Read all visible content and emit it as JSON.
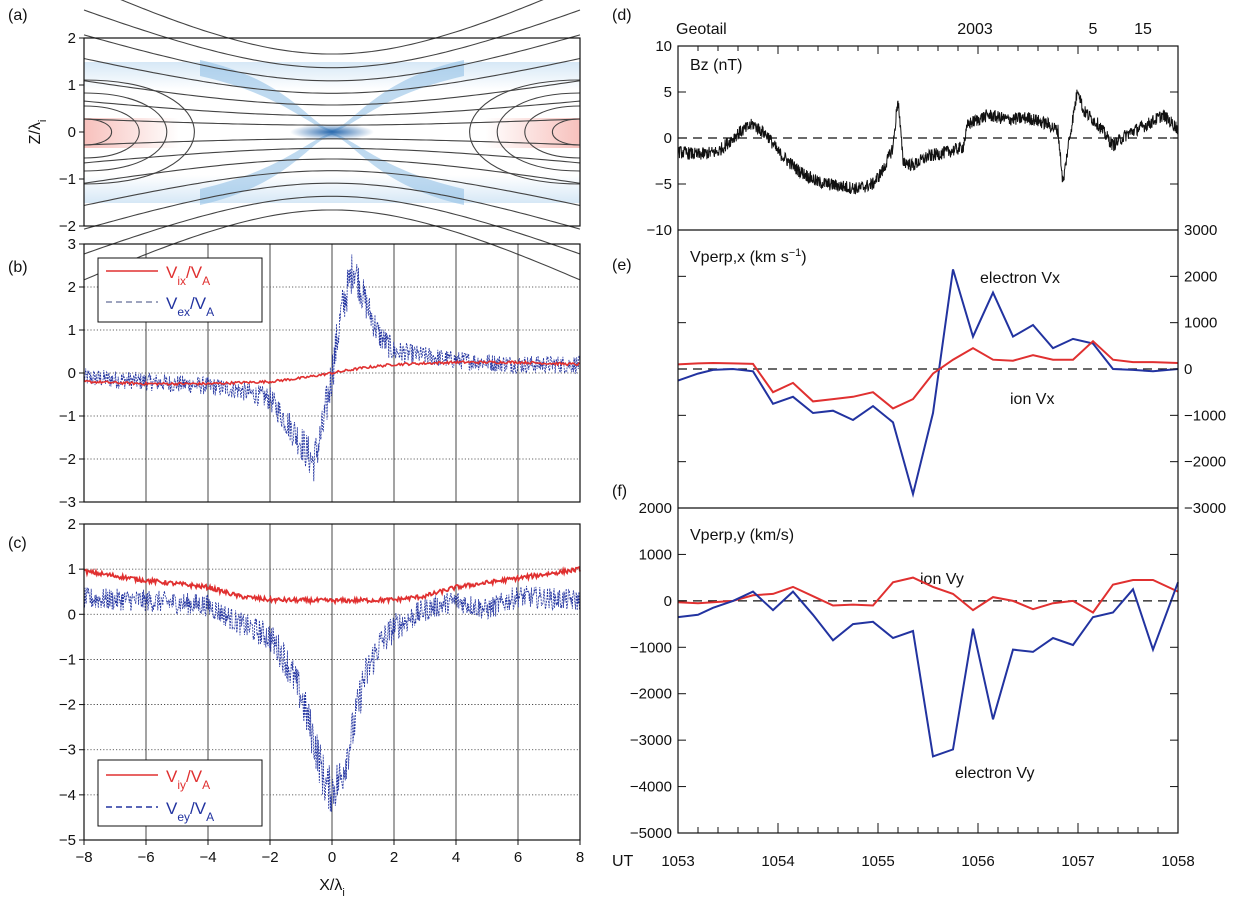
{
  "chart_data": [
    {
      "panel": "a",
      "type": "field-line map",
      "title": "(a)",
      "ylabel": "Z/λi",
      "xlim": [
        -8,
        8
      ],
      "ylim": [
        -2,
        2
      ],
      "yticks": [
        2,
        1,
        0,
        -1,
        -2
      ],
      "ytick_labels": [
        "2",
        "1",
        "0",
        "−1",
        "−2"
      ],
      "legend": "none"
    },
    {
      "panel": "b",
      "type": "line",
      "title": "(b)",
      "xlim": [
        -8,
        8
      ],
      "ylim": [
        -3,
        3
      ],
      "yticks": [
        3,
        2,
        1,
        0,
        -1,
        -2,
        -3
      ],
      "ytick_labels": [
        "3",
        "2",
        "1",
        "0",
        "−1",
        "−2",
        "−3"
      ],
      "grid": true,
      "legend_position": "top-left",
      "series": [
        {
          "name": "Vix/VA",
          "label_main": "V",
          "label_sub": "ix",
          "label_tail": "/V",
          "label_sub2": "A",
          "style": "solid",
          "color": "#e03030",
          "x": [
            -8,
            -6,
            -4,
            -2,
            -1,
            0,
            1,
            2,
            4,
            6,
            8
          ],
          "y": [
            -0.2,
            -0.25,
            -0.25,
            -0.2,
            -0.12,
            0,
            0.12,
            0.2,
            0.25,
            0.25,
            0.2
          ]
        },
        {
          "name": "Vex/VA",
          "label_main": "V",
          "label_sub": "ex",
          "label_tail": "/V",
          "label_sub2": "A",
          "style": "dashed",
          "color": "#2233a0",
          "x": [
            -8,
            -6,
            -4,
            -3,
            -2,
            -1.5,
            -1,
            -0.6,
            -0.3,
            0,
            0.3,
            0.7,
            1,
            1.5,
            2,
            4,
            6,
            8
          ],
          "y": [
            -0.1,
            -0.2,
            -0.3,
            -0.4,
            -0.6,
            -1.1,
            -1.6,
            -2.1,
            -1.3,
            0,
            1.4,
            2.5,
            1.8,
            0.9,
            0.5,
            0.3,
            0.2,
            0.2
          ]
        }
      ]
    },
    {
      "panel": "c",
      "type": "line",
      "title": "(c)",
      "xlabel": "X/λi",
      "xlim": [
        -8,
        8
      ],
      "ylim": [
        -5,
        2
      ],
      "xticks": [
        -8,
        -6,
        -4,
        -2,
        0,
        2,
        4,
        6,
        8
      ],
      "xtick_labels": [
        "−8",
        "−6",
        "−4",
        "−2",
        "0",
        "2",
        "4",
        "6",
        "8"
      ],
      "yticks": [
        2,
        1,
        0,
        -1,
        -2,
        -3,
        -4,
        -5
      ],
      "ytick_labels": [
        "2",
        "1",
        "0",
        "−1",
        "−2",
        "−3",
        "−4",
        "−5"
      ],
      "grid": true,
      "legend_position": "bottom-left",
      "series": [
        {
          "name": "Viy/VA",
          "label_main": "V",
          "label_sub": "iy",
          "label_tail": "/V",
          "label_sub2": "A",
          "style": "solid",
          "color": "#e03030",
          "x": [
            -8,
            -6,
            -4,
            -3,
            -2,
            0,
            2,
            3,
            4,
            6,
            8
          ],
          "y": [
            0.95,
            0.75,
            0.6,
            0.4,
            0.32,
            0.3,
            0.32,
            0.4,
            0.6,
            0.8,
            1.0
          ]
        },
        {
          "name": "Vey/VA",
          "label_main": "V",
          "label_sub": "ey",
          "label_tail": "/V",
          "label_sub2": "A",
          "style": "dashed",
          "color": "#2233a0",
          "x": [
            -8,
            -6,
            -4,
            -3,
            -2,
            -1.5,
            -1,
            -0.5,
            -0.2,
            0,
            0.3,
            0.7,
            1,
            1.5,
            2,
            3,
            4,
            5,
            6,
            8
          ],
          "y": [
            0.35,
            0.3,
            0.2,
            -0.2,
            -0.5,
            -1.0,
            -1.8,
            -3.0,
            -3.8,
            -3.9,
            -3.6,
            -2.5,
            -1.5,
            -0.7,
            -0.3,
            0.1,
            0.3,
            0.1,
            0.4,
            0.3
          ]
        }
      ]
    },
    {
      "panel": "d",
      "type": "line",
      "title": "(d)",
      "header_left": "Geotail",
      "header_date": "2003",
      "header_month": "5",
      "header_day": "15",
      "annotation": "Bz (nT)",
      "xlim": [
        1053,
        1058
      ],
      "ylim": [
        -10,
        10
      ],
      "yticks": [
        10,
        5,
        0,
        -5,
        -10
      ],
      "ytick_labels": [
        "10",
        "5",
        "0",
        "−5",
        "−10"
      ],
      "series": [
        {
          "name": "Bz",
          "color": "#111111",
          "x": [
            1053,
            1053.2,
            1053.4,
            1053.6,
            1053.75,
            1053.9,
            1054,
            1054.2,
            1054.4,
            1054.6,
            1054.8,
            1054.95,
            1055.05,
            1055.15,
            1055.2,
            1055.25,
            1055.35,
            1055.5,
            1055.7,
            1055.85,
            1055.9,
            1056.1,
            1056.3,
            1056.5,
            1056.7,
            1056.8,
            1056.85,
            1056.9,
            1057,
            1057.05,
            1057.2,
            1057.35,
            1057.5,
            1057.7,
            1057.85,
            1058
          ],
          "y": [
            -1.5,
            -1.8,
            -1.5,
            0.5,
            1.5,
            0.2,
            -1.5,
            -3.5,
            -4.8,
            -5.2,
            -5.5,
            -5,
            -3.5,
            -1,
            4.3,
            -2.5,
            -3,
            -2,
            -1.5,
            -1,
            1.5,
            2.5,
            2,
            2.2,
            1.5,
            0.8,
            -5,
            -1,
            5.5,
            3,
            1.5,
            -0.8,
            0.5,
            1.5,
            2.5,
            1
          ]
        }
      ]
    },
    {
      "panel": "e",
      "type": "line",
      "title": "(e)",
      "annotation": "Vperp,x (km s−1)",
      "annotation_main": "Vperp,x (km s",
      "annotation_sup": "−1",
      "annotation_tail": ")",
      "xlim": [
        1053,
        1058
      ],
      "ylim": [
        -3000,
        3000
      ],
      "yticks": [
        3000,
        2000,
        1000,
        0,
        -1000,
        -2000,
        -3000
      ],
      "ytick_labels": [
        "3000",
        "2000",
        "1000",
        "0",
        "−1000",
        "−2000",
        "−3000"
      ],
      "y_axis_side": "right",
      "series": [
        {
          "name": "electron Vx",
          "color": "#2233a0",
          "x": [
            1053,
            1053.2,
            1053.35,
            1053.55,
            1053.75,
            1053.95,
            1054.15,
            1054.35,
            1054.55,
            1054.75,
            1054.95,
            1055.15,
            1055.35,
            1055.55,
            1055.75,
            1055.95,
            1056.15,
            1056.35,
            1056.55,
            1056.75,
            1056.95,
            1057.15,
            1057.35,
            1057.55,
            1057.75,
            1058
          ],
          "y": [
            -250,
            -100,
            -20,
            0,
            -50,
            -750,
            -600,
            -950,
            -900,
            -1100,
            -800,
            -1150,
            -2700,
            -950,
            2150,
            700,
            1650,
            700,
            950,
            450,
            650,
            550,
            0,
            -20,
            -50,
            0
          ]
        },
        {
          "name": "ion Vx",
          "color": "#e03030",
          "x": [
            1053,
            1053.2,
            1053.35,
            1053.55,
            1053.75,
            1053.95,
            1054.15,
            1054.35,
            1054.55,
            1054.75,
            1054.95,
            1055.15,
            1055.35,
            1055.55,
            1055.75,
            1055.95,
            1056.15,
            1056.35,
            1056.55,
            1056.75,
            1056.95,
            1057.15,
            1057.35,
            1057.55,
            1057.75,
            1058
          ],
          "y": [
            100,
            120,
            130,
            120,
            110,
            -500,
            -300,
            -700,
            -650,
            -600,
            -500,
            -850,
            -650,
            -100,
            200,
            450,
            200,
            180,
            300,
            200,
            200,
            600,
            200,
            150,
            150,
            130
          ]
        }
      ]
    },
    {
      "panel": "f",
      "type": "line",
      "title": "(f)",
      "annotation": "Vperp,y (km/s)",
      "xlabel": "UT",
      "xlim": [
        1053,
        1058
      ],
      "ylim": [
        -5000,
        2000
      ],
      "xticks": [
        1053,
        1054,
        1055,
        1056,
        1057,
        1058
      ],
      "xtick_labels": [
        "1053",
        "1054",
        "1055",
        "1056",
        "1057",
        "1058"
      ],
      "yticks": [
        2000,
        1000,
        0,
        -1000,
        -2000,
        -3000,
        -4000,
        -5000
      ],
      "ytick_labels": [
        "2000",
        "1000",
        "0",
        "−1000",
        "−2000",
        "−3000",
        "−4000",
        "−5000"
      ],
      "series": [
        {
          "name": "ion Vy",
          "color": "#e03030",
          "x": [
            1053,
            1053.2,
            1053.35,
            1053.55,
            1053.75,
            1053.95,
            1054.15,
            1054.35,
            1054.55,
            1054.75,
            1054.95,
            1055.15,
            1055.35,
            1055.55,
            1055.75,
            1055.95,
            1056.15,
            1056.35,
            1056.55,
            1056.75,
            1056.95,
            1057.15,
            1057.35,
            1057.55,
            1057.75,
            1058
          ],
          "y": [
            -30,
            -50,
            -30,
            0,
            120,
            150,
            300,
            100,
            -100,
            -80,
            -100,
            400,
            500,
            300,
            150,
            -200,
            80,
            0,
            -180,
            -50,
            0,
            -250,
            350,
            450,
            450,
            200
          ]
        },
        {
          "name": "electron Vy",
          "color": "#2233a0",
          "x": [
            1053,
            1053.2,
            1053.35,
            1053.55,
            1053.75,
            1053.95,
            1054.15,
            1054.35,
            1054.55,
            1054.75,
            1054.95,
            1055.15,
            1055.35,
            1055.55,
            1055.75,
            1055.95,
            1056.15,
            1056.35,
            1056.55,
            1056.75,
            1056.95,
            1057.15,
            1057.35,
            1057.55,
            1057.75,
            1058
          ],
          "y": [
            -350,
            -300,
            -150,
            0,
            200,
            -200,
            200,
            -300,
            -850,
            -500,
            -450,
            -800,
            -650,
            -3350,
            -3200,
            -600,
            -2550,
            -1050,
            -1100,
            -800,
            -950,
            -350,
            -250,
            250,
            -1050,
            400
          ]
        }
      ]
    }
  ]
}
